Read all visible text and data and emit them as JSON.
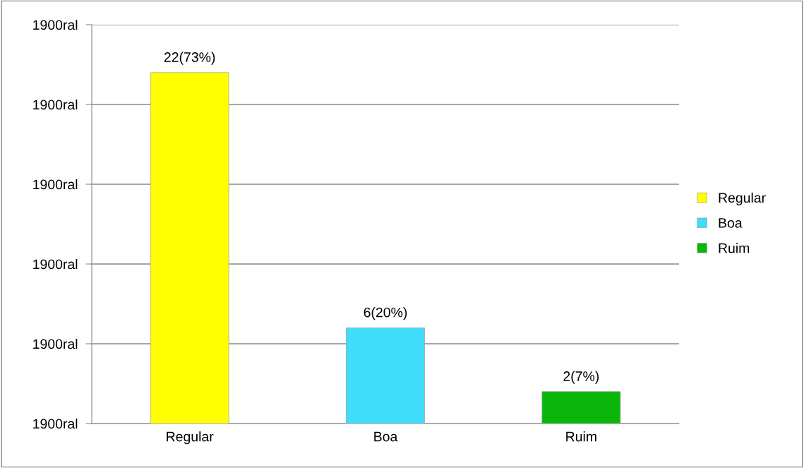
{
  "chart_data": {
    "type": "bar",
    "categories": [
      "Regular",
      "Boa",
      "Ruim"
    ],
    "series": [
      {
        "name": "Regular",
        "color": "#ffff00",
        "values": [
          22,
          null,
          null
        ],
        "value_labels": [
          "22(73%)",
          null,
          null
        ]
      },
      {
        "name": "Boa",
        "color": "#3fdcfc",
        "values": [
          null,
          6,
          null
        ],
        "value_labels": [
          null,
          "6(20%)",
          null
        ]
      },
      {
        "name": "Ruim",
        "color": "#0bb60b",
        "values": [
          null,
          null,
          2
        ],
        "value_labels": [
          null,
          null,
          "2(7%)"
        ]
      }
    ],
    "ylim": [
      0,
      25
    ],
    "yticks": [
      {
        "value": null,
        "label": "1900ral"
      },
      {
        "value": null,
        "label": "1900ral"
      },
      {
        "value": null,
        "label": "1900ral"
      },
      {
        "value": null,
        "label": "1900ral"
      },
      {
        "value": null,
        "label": "1900ral"
      },
      {
        "value": null,
        "label": "1900ral"
      }
    ],
    "grid": "y",
    "legend": "right"
  }
}
